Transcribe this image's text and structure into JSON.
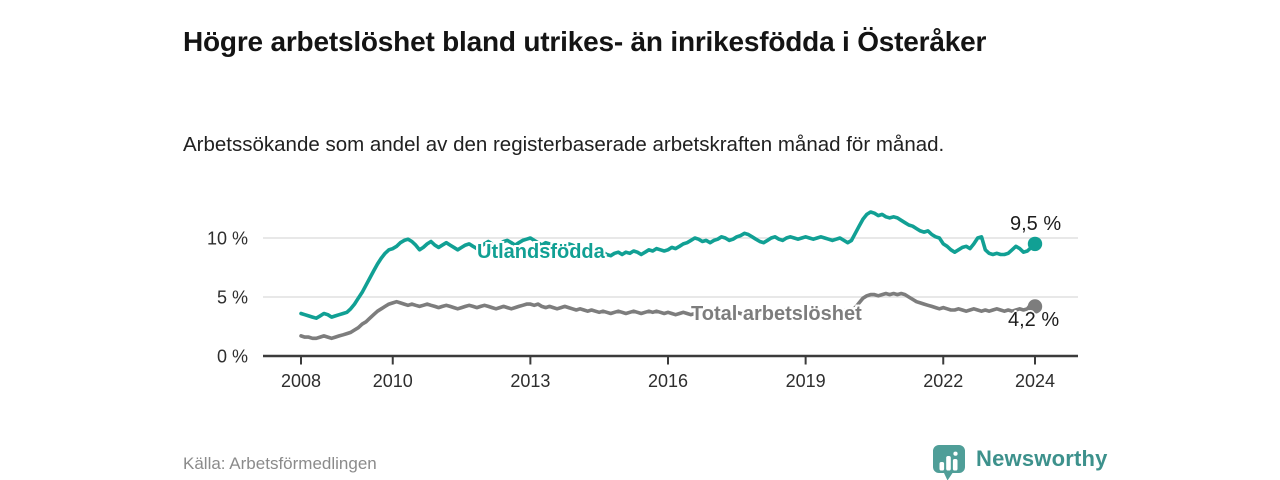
{
  "title": "Högre arbetslöshet bland utrikes- än inrikesfödda i Österåker",
  "subtitle": "Arbetssökande som andel av den registerbaserade arbetskraften månad för månad.",
  "source": "Källa: Arbetsförmedlingen",
  "branding": {
    "name": "Newsworthy",
    "icon": "newsworthy-bars-speech-bubble-icon",
    "text_color": "#3d918c",
    "icon_color": "#4f9e98"
  },
  "colors": {
    "series_foreign_born": "#11a094",
    "series_total": "#7d7d7d",
    "gridline": "#d9d9d9",
    "axis": "#3b3b3b",
    "tick_label": "#2e2e2e",
    "end_label": "#1c1c1c"
  },
  "chart_data": {
    "type": "line",
    "title": "Högre arbetslöshet bland utrikes- än inrikesfödda i Österåker",
    "subtitle": "Arbetssökande som andel av den registerbaserade arbetskraften månad för månad.",
    "x_unit": "year-month",
    "x_start_year": 2008,
    "points_per_year": 12,
    "x_ticks": [
      2008,
      2010,
      2013,
      2016,
      2019,
      2022,
      2024
    ],
    "x_tick_labels": [
      "2008",
      "2010",
      "2013",
      "2016",
      "2019",
      "2022",
      "2024"
    ],
    "y_ticks": [
      0,
      5,
      10
    ],
    "y_tick_labels": [
      "0 %",
      "5 %",
      "10 %"
    ],
    "ylim": [
      0,
      13
    ],
    "grid": "horizontal",
    "legend_position": "inline-labels",
    "series": [
      {
        "name": "Utlandsfödda",
        "color": "#11a094",
        "end_label": "9,5 %",
        "end_value": 9.5,
        "values": [
          3.6,
          3.5,
          3.4,
          3.3,
          3.2,
          3.4,
          3.6,
          3.5,
          3.3,
          3.4,
          3.5,
          3.6,
          3.7,
          4.0,
          4.4,
          4.9,
          5.4,
          6.0,
          6.6,
          7.2,
          7.8,
          8.3,
          8.7,
          9.0,
          9.1,
          9.3,
          9.6,
          9.8,
          9.9,
          9.7,
          9.4,
          9.0,
          9.2,
          9.5,
          9.7,
          9.4,
          9.2,
          9.4,
          9.6,
          9.4,
          9.2,
          9.0,
          9.2,
          9.4,
          9.5,
          9.3,
          9.1,
          9.3,
          9.5,
          9.7,
          9.5,
          9.3,
          9.5,
          9.7,
          9.8,
          9.6,
          9.4,
          9.6,
          9.8,
          9.9,
          10.0,
          9.8,
          9.6,
          9.4,
          9.6,
          9.5,
          9.3,
          9.4,
          9.2,
          9.3,
          9.5,
          9.4,
          9.2,
          9.0,
          8.8,
          8.9,
          8.7,
          8.6,
          8.7,
          8.8,
          8.6,
          8.5,
          8.7,
          8.8,
          8.6,
          8.8,
          8.7,
          8.9,
          8.8,
          8.6,
          8.8,
          9.0,
          8.9,
          9.1,
          9.0,
          8.9,
          9.0,
          9.2,
          9.1,
          9.3,
          9.5,
          9.6,
          9.8,
          10.0,
          9.9,
          9.7,
          9.8,
          9.6,
          9.8,
          9.9,
          10.1,
          10.0,
          9.8,
          9.9,
          10.1,
          10.2,
          10.4,
          10.3,
          10.1,
          9.9,
          9.7,
          9.6,
          9.8,
          10.0,
          10.1,
          9.9,
          9.8,
          10.0,
          10.1,
          10.0,
          9.9,
          10.0,
          10.1,
          10.0,
          9.9,
          10.0,
          10.1,
          10.0,
          9.9,
          9.8,
          9.9,
          10.0,
          9.8,
          9.6,
          9.8,
          10.4,
          11.0,
          11.6,
          12.0,
          12.2,
          12.1,
          11.9,
          12.0,
          11.8,
          11.7,
          11.8,
          11.7,
          11.5,
          11.3,
          11.1,
          11.0,
          10.8,
          10.6,
          10.5,
          10.6,
          10.3,
          10.1,
          10.0,
          9.5,
          9.3,
          9.0,
          8.8,
          9.0,
          9.2,
          9.3,
          9.1,
          9.5,
          10.0,
          10.1,
          9.0,
          8.7,
          8.6,
          8.7,
          8.6,
          8.6,
          8.7,
          9.0,
          9.3,
          9.1,
          8.8,
          8.9,
          9.2,
          9.5
        ]
      },
      {
        "name": "Total arbetslöshet",
        "color": "#7d7d7d",
        "end_label": "4,2 %",
        "end_value": 4.2,
        "values": [
          1.7,
          1.6,
          1.6,
          1.5,
          1.5,
          1.6,
          1.7,
          1.6,
          1.5,
          1.6,
          1.7,
          1.8,
          1.9,
          2.0,
          2.2,
          2.4,
          2.7,
          2.9,
          3.2,
          3.5,
          3.8,
          4.0,
          4.2,
          4.4,
          4.5,
          4.6,
          4.5,
          4.4,
          4.3,
          4.4,
          4.3,
          4.2,
          4.3,
          4.4,
          4.3,
          4.2,
          4.1,
          4.2,
          4.3,
          4.2,
          4.1,
          4.0,
          4.1,
          4.2,
          4.3,
          4.2,
          4.1,
          4.2,
          4.3,
          4.2,
          4.1,
          4.0,
          4.1,
          4.2,
          4.1,
          4.0,
          4.1,
          4.2,
          4.3,
          4.4,
          4.4,
          4.3,
          4.4,
          4.2,
          4.1,
          4.2,
          4.1,
          4.0,
          4.1,
          4.2,
          4.1,
          4.0,
          3.9,
          4.0,
          3.9,
          3.8,
          3.9,
          3.8,
          3.7,
          3.8,
          3.7,
          3.6,
          3.7,
          3.8,
          3.7,
          3.6,
          3.7,
          3.8,
          3.7,
          3.6,
          3.7,
          3.8,
          3.7,
          3.8,
          3.7,
          3.6,
          3.7,
          3.6,
          3.5,
          3.6,
          3.7,
          3.6,
          3.5,
          3.6,
          3.7,
          3.6,
          3.7,
          3.6,
          3.5,
          3.6,
          3.7,
          3.6,
          3.5,
          3.6,
          3.7,
          3.6,
          3.5,
          3.6,
          3.7,
          3.6,
          3.7,
          3.6,
          3.5,
          3.6,
          3.7,
          3.8,
          3.7,
          3.6,
          3.7,
          3.8,
          3.7,
          3.8,
          3.7,
          3.8,
          3.9,
          3.8,
          3.7,
          3.8,
          3.9,
          3.8,
          3.9,
          3.8,
          3.9,
          3.8,
          3.9,
          4.1,
          4.5,
          4.9,
          5.1,
          5.2,
          5.2,
          5.1,
          5.2,
          5.3,
          5.2,
          5.3,
          5.2,
          5.3,
          5.2,
          5.0,
          4.8,
          4.6,
          4.5,
          4.4,
          4.3,
          4.2,
          4.1,
          4.0,
          4.1,
          4.0,
          3.9,
          3.9,
          4.0,
          3.9,
          3.8,
          3.9,
          4.0,
          3.9,
          3.8,
          3.9,
          3.8,
          3.9,
          4.0,
          3.9,
          3.8,
          3.9,
          3.8,
          3.9,
          4.0,
          3.9,
          4.0,
          4.4,
          4.2
        ]
      }
    ]
  }
}
